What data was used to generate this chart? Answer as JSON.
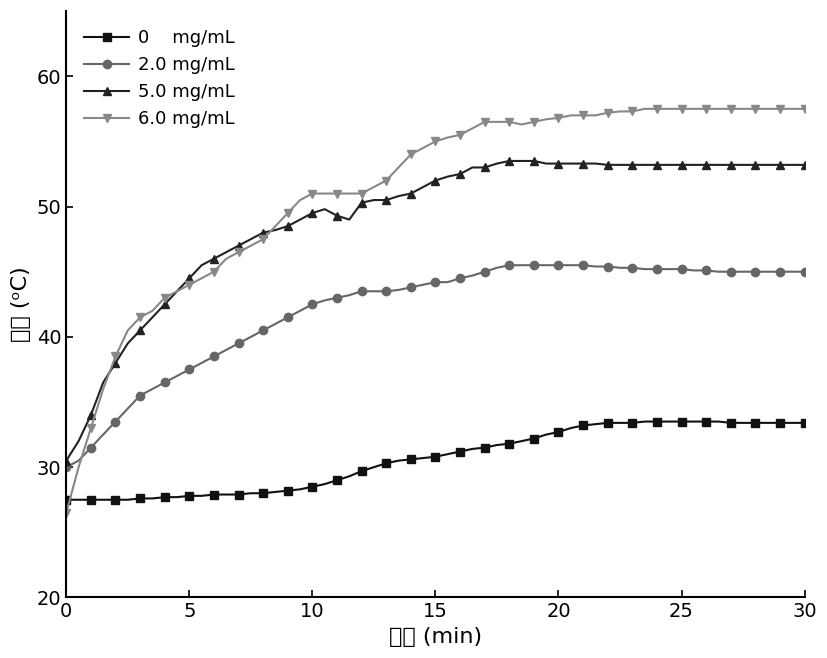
{
  "xlabel": "时间 (min)",
  "ylabel": "温度 (ᵒC)",
  "xlim": [
    0,
    30
  ],
  "ylim": [
    20,
    65
  ],
  "xticks": [
    0,
    5,
    10,
    15,
    20,
    25,
    30
  ],
  "yticks": [
    20,
    30,
    40,
    50,
    60
  ],
  "legend_labels": [
    "0    mg/mL",
    "2.0 mg/mL",
    "5.0 mg/mL",
    "6.0 mg/mL"
  ],
  "colors": [
    "#111111",
    "#666666",
    "#222222",
    "#888888"
  ],
  "markers": [
    "s",
    "o",
    "^",
    "v"
  ],
  "series": {
    "s0": {
      "x": [
        0,
        0.5,
        1,
        1.5,
        2,
        2.5,
        3,
        3.5,
        4,
        4.5,
        5,
        5.5,
        6,
        6.5,
        7,
        7.5,
        8,
        8.5,
        9,
        9.5,
        10,
        10.5,
        11,
        11.5,
        12,
        12.5,
        13,
        13.5,
        14,
        14.5,
        15,
        15.5,
        16,
        16.5,
        17,
        17.5,
        18,
        18.5,
        19,
        19.5,
        20,
        20.5,
        21,
        21.5,
        22,
        22.5,
        23,
        23.5,
        24,
        24.5,
        25,
        25.5,
        26,
        26.5,
        27,
        27.5,
        28,
        28.5,
        29,
        29.5,
        30
      ],
      "y": [
        27.5,
        27.5,
        27.5,
        27.5,
        27.5,
        27.5,
        27.6,
        27.6,
        27.7,
        27.7,
        27.8,
        27.8,
        27.9,
        27.9,
        27.9,
        28.0,
        28.0,
        28.1,
        28.2,
        28.3,
        28.5,
        28.7,
        29.0,
        29.3,
        29.7,
        30.0,
        30.3,
        30.5,
        30.6,
        30.7,
        30.8,
        31.0,
        31.2,
        31.4,
        31.5,
        31.7,
        31.8,
        32.0,
        32.2,
        32.5,
        32.7,
        33.0,
        33.2,
        33.3,
        33.4,
        33.4,
        33.4,
        33.5,
        33.5,
        33.5,
        33.5,
        33.5,
        33.5,
        33.5,
        33.4,
        33.4,
        33.4,
        33.4,
        33.4,
        33.4,
        33.4
      ]
    },
    "s2": {
      "x": [
        0,
        0.5,
        1,
        1.5,
        2,
        2.5,
        3,
        3.5,
        4,
        4.5,
        5,
        5.5,
        6,
        6.5,
        7,
        7.5,
        8,
        8.5,
        9,
        9.5,
        10,
        10.5,
        11,
        11.5,
        12,
        12.5,
        13,
        13.5,
        14,
        14.5,
        15,
        15.5,
        16,
        16.5,
        17,
        17.5,
        18,
        18.5,
        19,
        19.5,
        20,
        20.5,
        21,
        21.5,
        22,
        22.5,
        23,
        23.5,
        24,
        24.5,
        25,
        25.5,
        26,
        26.5,
        27,
        27.5,
        28,
        28.5,
        29,
        29.5,
        30
      ],
      "y": [
        30.0,
        30.5,
        31.5,
        32.5,
        33.5,
        34.5,
        35.5,
        36.0,
        36.5,
        37.0,
        37.5,
        38.0,
        38.5,
        39.0,
        39.5,
        40.0,
        40.5,
        41.0,
        41.5,
        42.0,
        42.5,
        42.8,
        43.0,
        43.2,
        43.5,
        43.5,
        43.5,
        43.6,
        43.8,
        44.0,
        44.2,
        44.2,
        44.5,
        44.7,
        45.0,
        45.3,
        45.5,
        45.5,
        45.5,
        45.5,
        45.5,
        45.5,
        45.5,
        45.4,
        45.4,
        45.3,
        45.3,
        45.2,
        45.2,
        45.2,
        45.2,
        45.1,
        45.1,
        45.0,
        45.0,
        45.0,
        45.0,
        45.0,
        45.0,
        45.0,
        45.0
      ]
    },
    "s5": {
      "x": [
        0,
        0.5,
        1,
        1.5,
        2,
        2.5,
        3,
        3.5,
        4,
        4.5,
        5,
        5.5,
        6,
        6.5,
        7,
        7.5,
        8,
        8.5,
        9,
        9.5,
        10,
        10.5,
        11,
        11.5,
        12,
        12.5,
        13,
        13.5,
        14,
        14.5,
        15,
        15.5,
        16,
        16.5,
        17,
        17.5,
        18,
        18.5,
        19,
        19.5,
        20,
        20.5,
        21,
        21.5,
        22,
        22.5,
        23,
        23.5,
        24,
        24.5,
        25,
        25.5,
        26,
        26.5,
        27,
        27.5,
        28,
        28.5,
        29,
        29.5,
        30
      ],
      "y": [
        30.5,
        32.0,
        34.0,
        36.5,
        38.0,
        39.5,
        40.5,
        41.5,
        42.5,
        43.5,
        44.5,
        45.5,
        46.0,
        46.5,
        47.0,
        47.5,
        48.0,
        48.2,
        48.5,
        49.0,
        49.5,
        49.8,
        49.3,
        49.0,
        50.3,
        50.5,
        50.5,
        50.8,
        51.0,
        51.5,
        52.0,
        52.3,
        52.5,
        53.0,
        53.0,
        53.3,
        53.5,
        53.5,
        53.5,
        53.3,
        53.3,
        53.3,
        53.3,
        53.3,
        53.2,
        53.2,
        53.2,
        53.2,
        53.2,
        53.2,
        53.2,
        53.2,
        53.2,
        53.2,
        53.2,
        53.2,
        53.2,
        53.2,
        53.2,
        53.2,
        53.2
      ]
    },
    "s6": {
      "x": [
        0,
        0.5,
        1,
        1.5,
        2,
        2.5,
        3,
        3.5,
        4,
        4.5,
        5,
        5.5,
        6,
        6.5,
        7,
        7.5,
        8,
        8.5,
        9,
        9.5,
        10,
        10.5,
        11,
        11.5,
        12,
        12.5,
        13,
        13.5,
        14,
        14.5,
        15,
        15.5,
        16,
        16.5,
        17,
        17.5,
        18,
        18.5,
        19,
        19.5,
        20,
        20.5,
        21,
        21.5,
        22,
        22.5,
        23,
        23.5,
        24,
        24.5,
        25,
        25.5,
        26,
        26.5,
        27,
        27.5,
        28,
        28.5,
        29,
        29.5,
        30
      ],
      "y": [
        26.5,
        30.0,
        33.0,
        36.0,
        38.5,
        40.5,
        41.5,
        42.0,
        43.0,
        43.5,
        44.0,
        44.5,
        45.0,
        46.0,
        46.5,
        47.0,
        47.5,
        48.5,
        49.5,
        50.5,
        51.0,
        51.0,
        51.0,
        51.0,
        51.0,
        51.5,
        52.0,
        53.0,
        54.0,
        54.5,
        55.0,
        55.3,
        55.5,
        56.0,
        56.5,
        56.5,
        56.5,
        56.3,
        56.5,
        56.7,
        56.8,
        57.0,
        57.0,
        57.0,
        57.2,
        57.3,
        57.3,
        57.5,
        57.5,
        57.5,
        57.5,
        57.5,
        57.5,
        57.5,
        57.5,
        57.5,
        57.5,
        57.5,
        57.5,
        57.5,
        57.5
      ]
    }
  }
}
